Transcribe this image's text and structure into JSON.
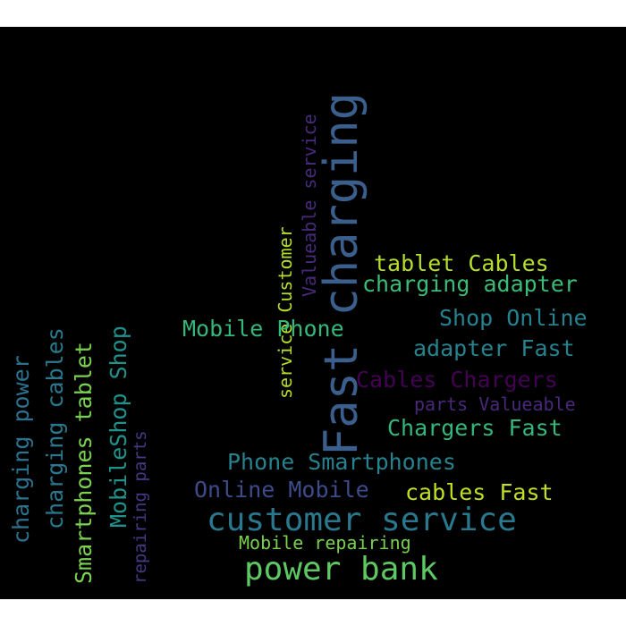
{
  "words": [
    {
      "text": "Fast charging",
      "color": "#3b5f8c"
    },
    {
      "text": "Valueable service",
      "color": "#472a7a"
    },
    {
      "text": "service Customer",
      "color": "#b5de2b"
    },
    {
      "text": "tablet Cables",
      "color": "#b5de2b"
    },
    {
      "text": "charging adapter",
      "color": "#3bbb75"
    },
    {
      "text": "Shop Online",
      "color": "#26828e"
    },
    {
      "text": "Mobile Phone",
      "color": "#35b779"
    },
    {
      "text": "adapter Fast",
      "color": "#26828e"
    },
    {
      "text": "Cables Chargers",
      "color": "#440154"
    },
    {
      "text": "parts Valueable",
      "color": "#482878"
    },
    {
      "text": "Chargers Fast",
      "color": "#35b779"
    },
    {
      "text": "Phone Smartphones",
      "color": "#26828e"
    },
    {
      "text": "Online Mobile",
      "color": "#3e4a89"
    },
    {
      "text": "cables Fast",
      "color": "#c2df23"
    },
    {
      "text": "customer service",
      "color": "#2a788e"
    },
    {
      "text": "Mobile repairing",
      "color": "#7ad151"
    },
    {
      "text": "power bank",
      "color": "#5ec962"
    },
    {
      "text": "charging power",
      "color": "#2c728e"
    },
    {
      "text": "charging cables",
      "color": "#2a788e"
    },
    {
      "text": "Smartphones tablet",
      "color": "#7ad151"
    },
    {
      "text": "MobileShop Shop",
      "color": "#21918c"
    },
    {
      "text": "repairing parts",
      "color": "#443a83"
    }
  ]
}
